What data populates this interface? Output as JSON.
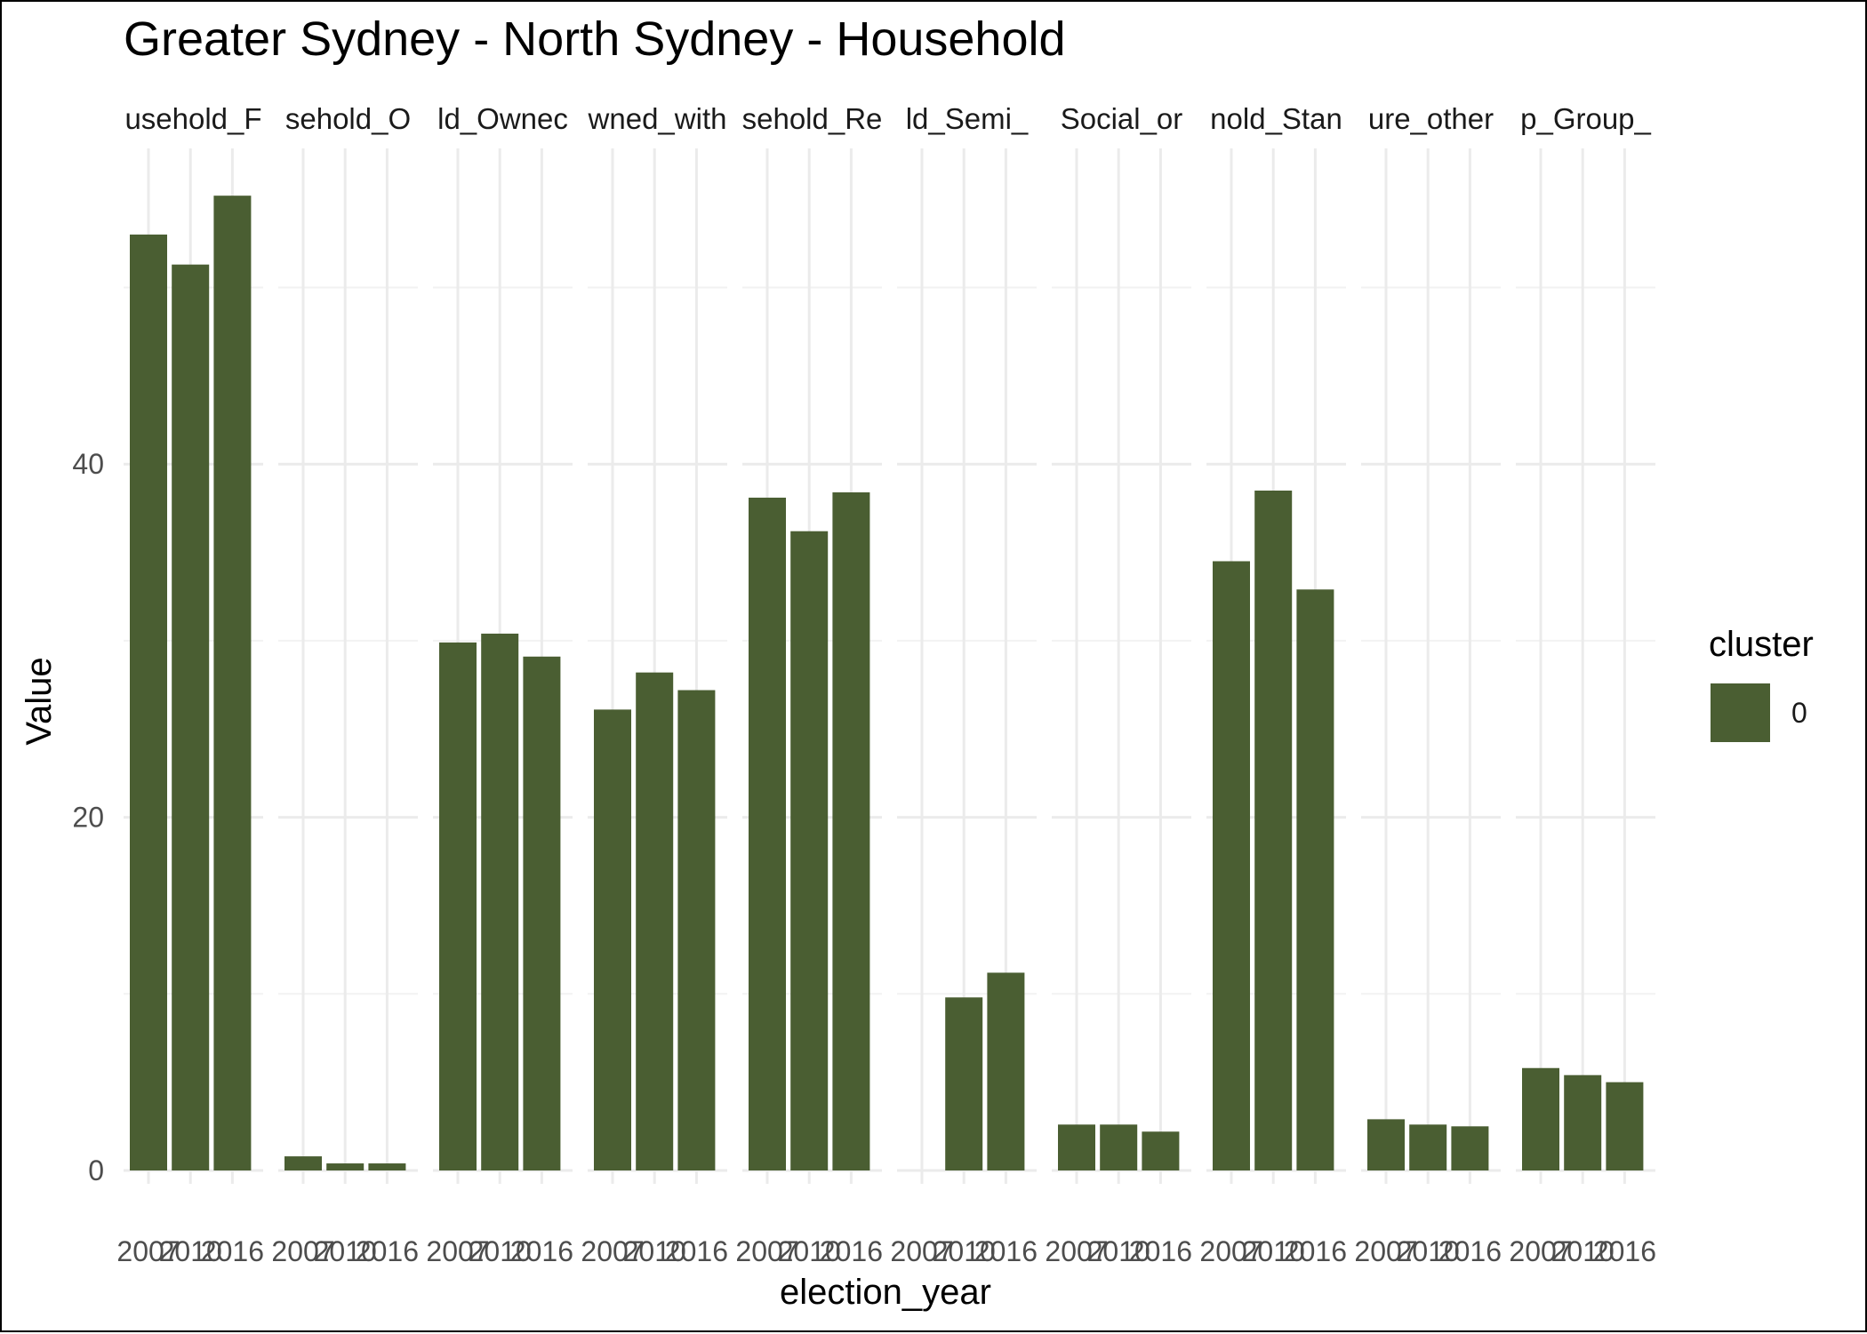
{
  "chart_data": {
    "type": "bar",
    "title": "Greater Sydney - North Sydney - Household",
    "xlabel": "election_year",
    "ylabel": "Value",
    "ylim": [
      0,
      55.5
    ],
    "y_ticks": [
      0,
      20,
      40
    ],
    "y_minor_ticks": [
      10,
      30,
      50
    ],
    "grid": true,
    "fill_color": "#4a5e32",
    "categories": [
      "2007",
      "2010",
      "2016"
    ],
    "facets": [
      {
        "strip_label": "usehold_F",
        "values": [
          53.0,
          51.3,
          55.2
        ]
      },
      {
        "strip_label": "sehold_O",
        "values": [
          0.8,
          0.4,
          0.4
        ]
      },
      {
        "strip_label": "ld_Ownec",
        "values": [
          29.9,
          30.4,
          29.1
        ]
      },
      {
        "strip_label": "wned_with",
        "values": [
          26.1,
          28.2,
          27.2
        ]
      },
      {
        "strip_label": "sehold_Re",
        "values": [
          38.1,
          36.2,
          38.4
        ]
      },
      {
        "strip_label": "ld_Semi_",
        "values": [
          0,
          9.8,
          11.2
        ]
      },
      {
        "strip_label": "Social_or",
        "values": [
          2.6,
          2.6,
          2.2
        ]
      },
      {
        "strip_label": "nold_Stan",
        "values": [
          34.5,
          38.5,
          32.9
        ]
      },
      {
        "strip_label": "ure_other",
        "values": [
          2.9,
          2.6,
          2.5
        ]
      },
      {
        "strip_label": "p_Group_",
        "values": [
          5.8,
          5.4,
          5.0
        ]
      }
    ],
    "legend": {
      "title": "cluster",
      "entries": [
        {
          "label": "0",
          "color": "#4a5e32"
        }
      ],
      "position": "right"
    }
  }
}
